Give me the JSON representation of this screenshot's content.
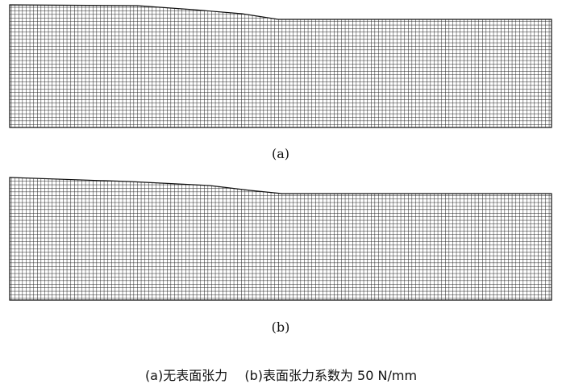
{
  "figure": {
    "panels": [
      {
        "label": "(a)"
      },
      {
        "label": "(b)"
      }
    ],
    "caption": {
      "part_a": "(a)无表面张力",
      "part_b": "(b)表面张力系数为 50 N/mm"
    },
    "mesh_color": "#111111"
  }
}
